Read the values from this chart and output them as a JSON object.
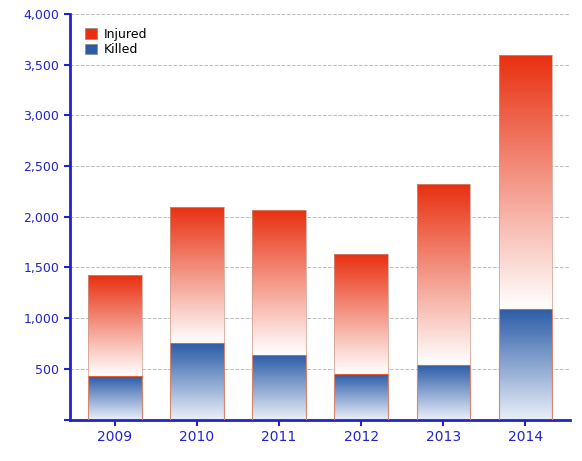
{
  "years": [
    "2009",
    "2010",
    "2011",
    "2012",
    "2013",
    "2014"
  ],
  "killed": [
    430,
    750,
    640,
    450,
    540,
    1090
  ],
  "totals": [
    1420,
    2100,
    2070,
    1630,
    2320,
    3590
  ],
  "ylim": [
    0,
    4000
  ],
  "yticks": [
    0,
    500,
    1000,
    1500,
    2000,
    2500,
    3000,
    3500,
    4000
  ],
  "killed_top_color": "#2b5ca8",
  "killed_bottom_color": "#e8eef8",
  "injured_top_color": "#e83010",
  "injured_bottom_color": "#ffffff",
  "background_color": "#ffffff",
  "grid_color": "#aaaaaa",
  "axis_color": "#2222cc",
  "bar_width": 0.65,
  "legend_injured": "Injured",
  "legend_killed": "Killed",
  "figure_width": 5.82,
  "figure_height": 4.61,
  "dpi": 100
}
